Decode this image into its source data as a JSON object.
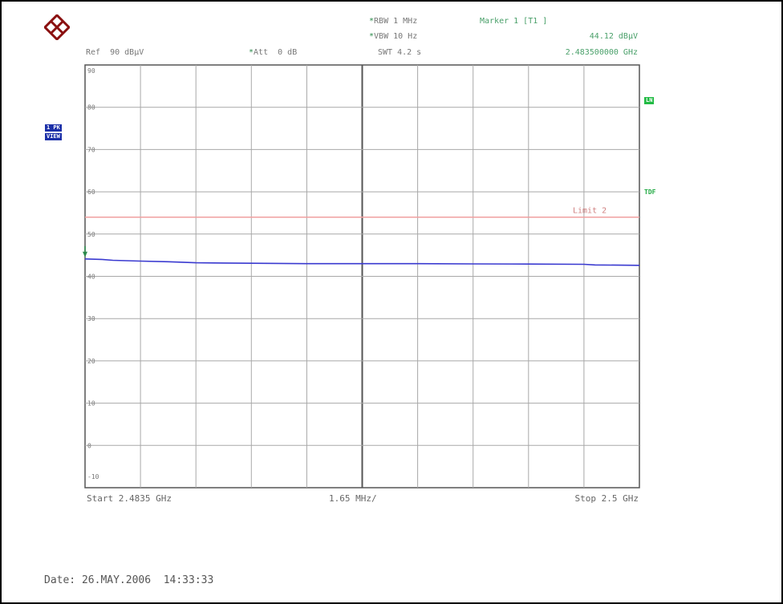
{
  "header": {
    "ref": "Ref  90 dBµV",
    "att_star": "*",
    "att": "Att  0 dB",
    "rbw_star": "*",
    "rbw": "RBW 1 MHz",
    "vbw_star": "*",
    "vbw": "VBW 10 Hz",
    "swt": "SWT 4.2 s",
    "marker_title": "Marker 1 [T1 ]",
    "marker_level": "44.12 dBµV",
    "marker_freq": "2.483500000 GHz"
  },
  "badges": {
    "trace_mode_1": "1 PK",
    "trace_mode_2": "VIEW",
    "right_1": "LN",
    "right_2": "TDF"
  },
  "footer": {
    "start": "Start 2.4835 GHz",
    "span": "1.65 MHz/",
    "stop": "Stop 2.5 GHz",
    "date": "Date: 26.MAY.2006  14:33:33"
  },
  "colors": {
    "trace": "#3a3ad0",
    "limit_line": "#f0a0a0",
    "grid": "#a8a8a8",
    "marker": "#2a8a4a",
    "badge_blue": "#1b2fa8",
    "badge_green": "#22bb44"
  },
  "chart_data": {
    "type": "line",
    "ylim": [
      -10,
      90
    ],
    "y_ticks": [
      "90",
      "80",
      "70",
      "60",
      "50",
      "40",
      "30",
      "20",
      "10",
      "0",
      "-10"
    ],
    "x_ticks_divisions": 10,
    "limit_line": {
      "label": "Limit 2",
      "value": 54
    },
    "marker": {
      "x_division": 0,
      "y": 44.12
    },
    "series": [
      {
        "points": [
          [
            0,
            44.12
          ],
          [
            0.3,
            44.0
          ],
          [
            0.5,
            43.8
          ],
          [
            1.0,
            43.6
          ],
          [
            1.5,
            43.45
          ],
          [
            2.0,
            43.2
          ],
          [
            2.5,
            43.15
          ],
          [
            3.0,
            43.1
          ],
          [
            4.0,
            43.0
          ],
          [
            5.0,
            43.0
          ],
          [
            6.0,
            43.0
          ],
          [
            7.0,
            42.95
          ],
          [
            8.0,
            42.9
          ],
          [
            9.0,
            42.85
          ],
          [
            9.2,
            42.7
          ],
          [
            10.0,
            42.6
          ]
        ]
      }
    ]
  }
}
